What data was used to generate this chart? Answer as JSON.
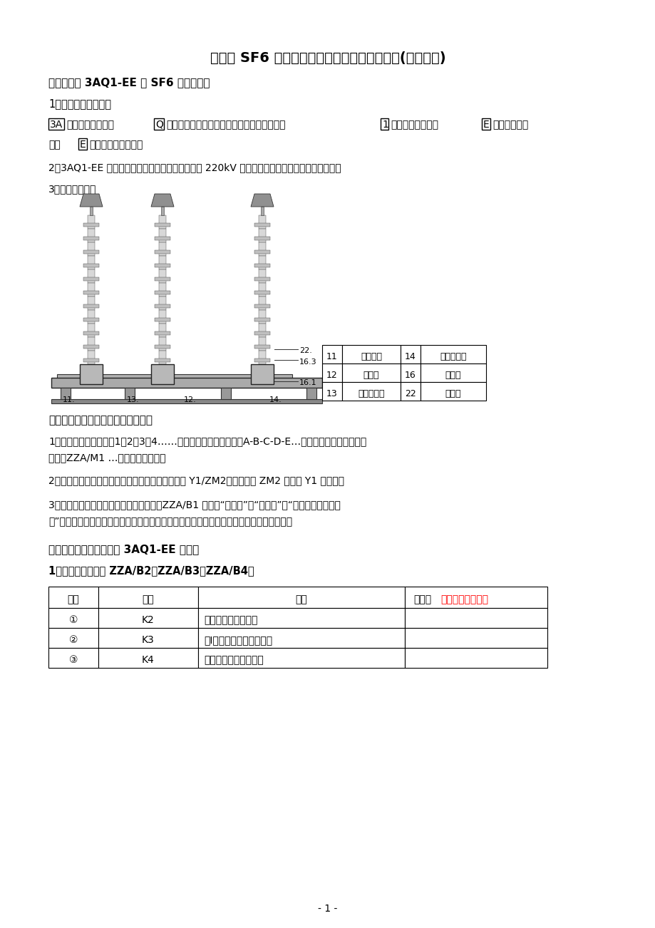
{
  "title": "西门子 SF6 高压断路器（液压机构）培训资料(二次回路)",
  "bg_color": "#ffffff",
  "text_color": "#000000",
  "diagram_table": [
    {
      "num": "11",
      "name": "开关基架",
      "num2": "14",
      "name2": "液压操作缸"
    },
    {
      "num": "12",
      "name": "控制筱",
      "num2": "16",
      "name2": "络缘子"
    },
    {
      "num": "13",
      "name": "液压储能筒",
      "num2": "22",
      "name2": "灬弧室"
    }
  ],
  "component_table_header": [
    "序号",
    "编号",
    "名称",
    "功能（培训过程中掌据）"
  ],
  "component_table_rows": [
    [
      "①",
      "K2",
      "油压合闸闭锁继电器",
      ""
    ],
    [
      "②",
      "K3",
      "第Ⅰ组油压分闸闭锁继电器",
      ""
    ],
    [
      "③",
      "K4",
      "自动重合闸闭锁继电器",
      ""
    ]
  ],
  "page_num": "- 1 -"
}
